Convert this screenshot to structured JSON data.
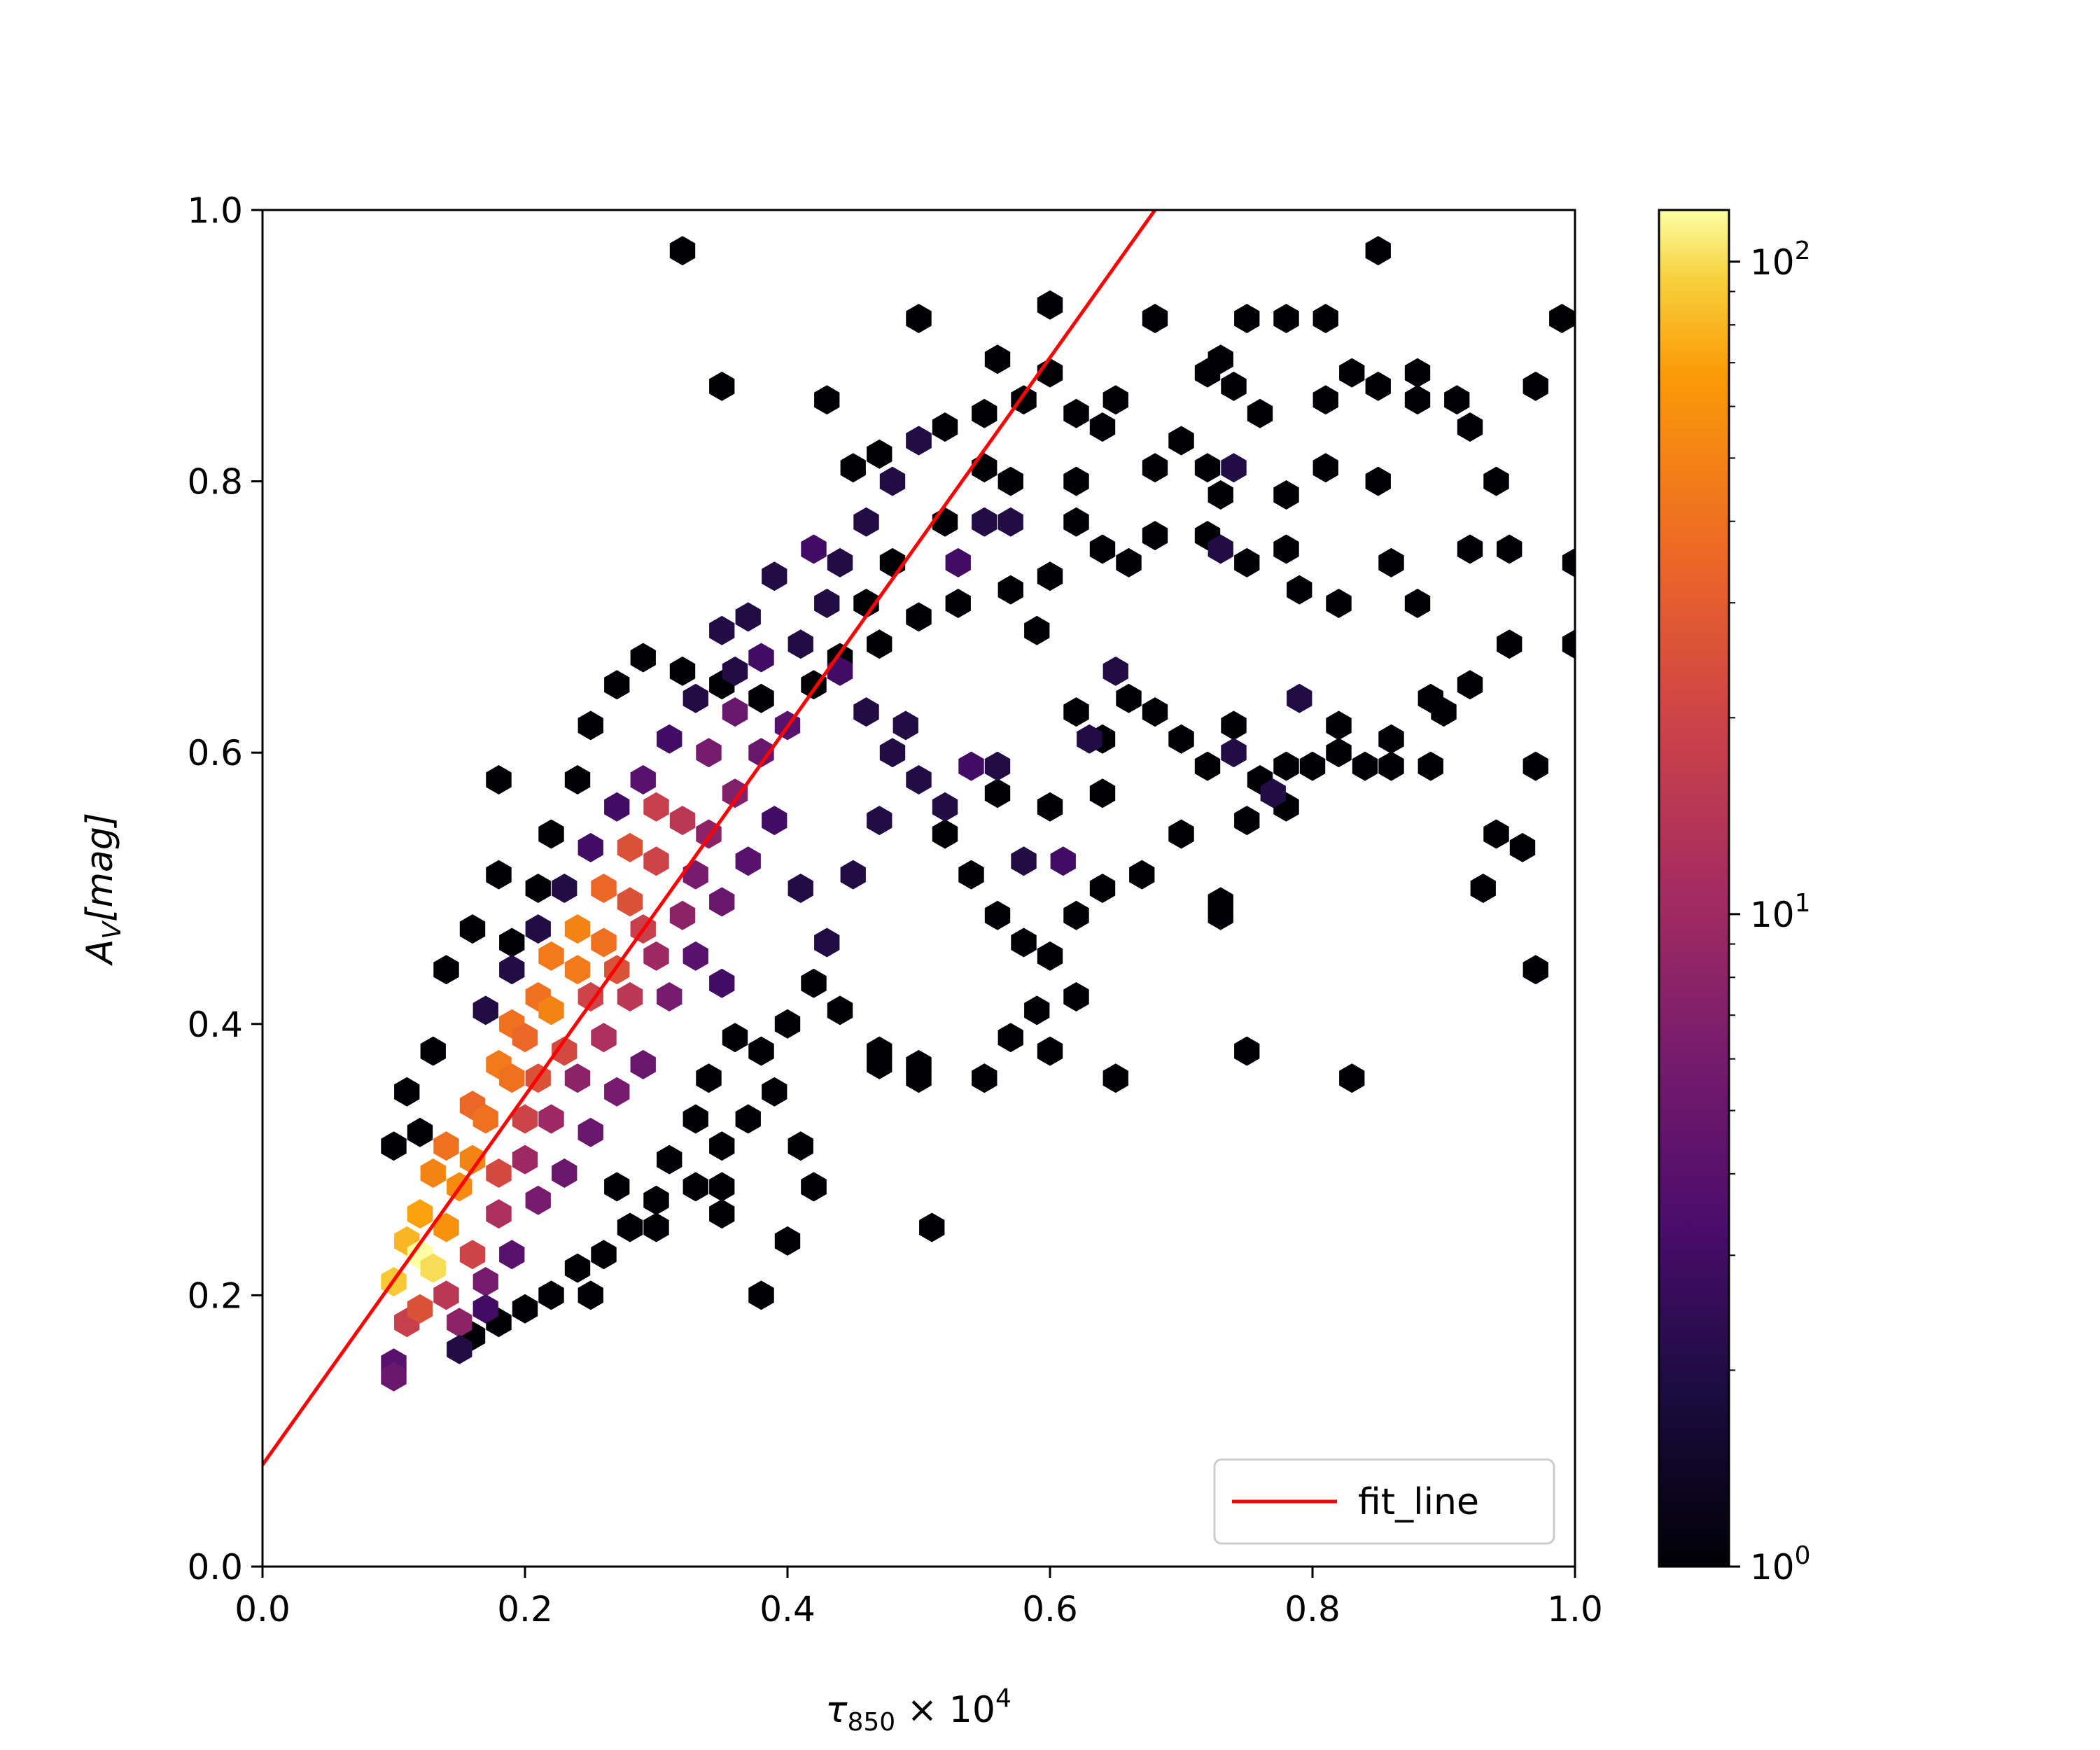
{
  "chart_data": {
    "type": "hexbin",
    "title": "",
    "xlabel": {
      "base": "τ",
      "sub": "850",
      "rest": " × 10",
      "sup": "4"
    },
    "ylabel": {
      "base": "A",
      "sub": "V",
      "rest": "[mag]"
    },
    "xlim": [
      0.0,
      1.0
    ],
    "ylim": [
      0.0,
      1.0
    ],
    "xticks": [
      "0.0",
      "0.2",
      "0.4",
      "0.6",
      "0.8",
      "1.0"
    ],
    "yticks": [
      "0.0",
      "0.2",
      "0.4",
      "0.6",
      "0.8",
      "1.0"
    ],
    "grid": false,
    "legend": {
      "placement": "lower-right",
      "entries": [
        {
          "label": "fit_line",
          "color": "#ff0000"
        }
      ]
    },
    "fit_line": {
      "name": "fit_line",
      "color": "#ff0000",
      "points": [
        [
          0.0,
          0.075
        ],
        [
          0.68,
          1.0
        ]
      ]
    },
    "colorbar": {
      "scale": "log",
      "min": 1,
      "max": 120,
      "colormap": "inferno",
      "ticks": [
        {
          "value": 1,
          "base": "10",
          "exp": "0"
        },
        {
          "value": 10,
          "base": "10",
          "exp": "1"
        },
        {
          "value": 100,
          "base": "10",
          "exp": "2"
        }
      ]
    },
    "hex_counts": [
      [
        0.1,
        0.15,
        4
      ],
      [
        0.11,
        0.18,
        18
      ],
      [
        0.1,
        0.21,
        90
      ],
      [
        0.11,
        0.24,
        80
      ],
      [
        0.12,
        0.23,
        120
      ],
      [
        0.13,
        0.22,
        100
      ],
      [
        0.12,
        0.26,
        70
      ],
      [
        0.14,
        0.25,
        60
      ],
      [
        0.13,
        0.29,
        50
      ],
      [
        0.15,
        0.28,
        55
      ],
      [
        0.14,
        0.31,
        40
      ],
      [
        0.16,
        0.3,
        50
      ],
      [
        0.16,
        0.34,
        35
      ],
      [
        0.17,
        0.33,
        40
      ],
      [
        0.18,
        0.37,
        45
      ],
      [
        0.19,
        0.36,
        40
      ],
      [
        0.19,
        0.4,
        40
      ],
      [
        0.2,
        0.39,
        35
      ],
      [
        0.21,
        0.42,
        40
      ],
      [
        0.22,
        0.41,
        50
      ],
      [
        0.22,
        0.45,
        45
      ],
      [
        0.24,
        0.44,
        45
      ],
      [
        0.24,
        0.47,
        50
      ],
      [
        0.26,
        0.46,
        40
      ],
      [
        0.26,
        0.5,
        35
      ],
      [
        0.28,
        0.49,
        25
      ],
      [
        0.28,
        0.53,
        25
      ],
      [
        0.3,
        0.52,
        20
      ],
      [
        0.3,
        0.56,
        18
      ],
      [
        0.32,
        0.55,
        15
      ],
      [
        0.14,
        0.2,
        15
      ],
      [
        0.16,
        0.23,
        20
      ],
      [
        0.18,
        0.26,
        12
      ],
      [
        0.2,
        0.3,
        10
      ],
      [
        0.22,
        0.33,
        10
      ],
      [
        0.24,
        0.36,
        8
      ],
      [
        0.26,
        0.39,
        12
      ],
      [
        0.28,
        0.42,
        15
      ],
      [
        0.3,
        0.45,
        10
      ],
      [
        0.32,
        0.48,
        8
      ],
      [
        0.12,
        0.19,
        25
      ],
      [
        0.15,
        0.18,
        8
      ],
      [
        0.17,
        0.21,
        6
      ],
      [
        0.18,
        0.29,
        22
      ],
      [
        0.2,
        0.33,
        20
      ],
      [
        0.21,
        0.36,
        25
      ],
      [
        0.23,
        0.38,
        22
      ],
      [
        0.25,
        0.42,
        20
      ],
      [
        0.27,
        0.44,
        25
      ],
      [
        0.29,
        0.47,
        18
      ],
      [
        0.34,
        0.6,
        6
      ],
      [
        0.36,
        0.63,
        5
      ],
      [
        0.34,
        0.54,
        8
      ],
      [
        0.36,
        0.57,
        7
      ],
      [
        0.38,
        0.6,
        5
      ],
      [
        0.4,
        0.62,
        4
      ],
      [
        0.33,
        0.51,
        6
      ],
      [
        0.35,
        0.49,
        5
      ],
      [
        0.37,
        0.52,
        4
      ],
      [
        0.39,
        0.55,
        3
      ],
      [
        0.31,
        0.42,
        6
      ],
      [
        0.33,
        0.45,
        4
      ],
      [
        0.35,
        0.43,
        3
      ],
      [
        0.29,
        0.37,
        5
      ],
      [
        0.27,
        0.35,
        6
      ],
      [
        0.25,
        0.32,
        5
      ],
      [
        0.23,
        0.29,
        5
      ],
      [
        0.21,
        0.27,
        6
      ],
      [
        0.19,
        0.23,
        4
      ],
      [
        0.17,
        0.19,
        3
      ],
      [
        0.15,
        0.16,
        2
      ],
      [
        0.1,
        0.14,
        5
      ],
      [
        0.38,
        0.67,
        3
      ],
      [
        0.36,
        0.66,
        2
      ],
      [
        0.33,
        0.64,
        2
      ],
      [
        0.31,
        0.61,
        3
      ],
      [
        0.29,
        0.58,
        4
      ],
      [
        0.27,
        0.56,
        3
      ],
      [
        0.25,
        0.53,
        3
      ],
      [
        0.23,
        0.5,
        2
      ],
      [
        0.21,
        0.47,
        2
      ],
      [
        0.19,
        0.44,
        2
      ],
      [
        0.17,
        0.41,
        2
      ],
      [
        0.41,
        0.68,
        2
      ],
      [
        0.43,
        0.71,
        2
      ],
      [
        0.44,
        0.74,
        2
      ],
      [
        0.46,
        0.77,
        2
      ],
      [
        0.48,
        0.8,
        2
      ],
      [
        0.42,
        0.75,
        3
      ],
      [
        0.44,
        0.66,
        3
      ],
      [
        0.46,
        0.63,
        2
      ],
      [
        0.48,
        0.6,
        2
      ],
      [
        0.5,
        0.58,
        2
      ],
      [
        0.52,
        0.56,
        2
      ],
      [
        0.54,
        0.59,
        3
      ],
      [
        0.56,
        0.59,
        2
      ],
      [
        0.61,
        0.52,
        3
      ],
      [
        0.63,
        0.61,
        2
      ],
      [
        0.65,
        0.66,
        2
      ],
      [
        0.53,
        0.74,
        3
      ],
      [
        0.55,
        0.77,
        2
      ],
      [
        0.57,
        0.77,
        2
      ],
      [
        0.5,
        0.83,
        2
      ],
      [
        0.77,
        0.57,
        2
      ],
      [
        0.79,
        0.64,
        2
      ],
      [
        0.74,
        0.6,
        2
      ],
      [
        0.73,
        0.75,
        2
      ],
      [
        0.74,
        0.81,
        2
      ],
      [
        0.41,
        0.5,
        2
      ],
      [
        0.43,
        0.46,
        2
      ],
      [
        0.45,
        0.51,
        2
      ],
      [
        0.47,
        0.55,
        2
      ],
      [
        0.58,
        0.52,
        2
      ],
      [
        0.49,
        0.62,
        2
      ],
      [
        0.39,
        0.73,
        2
      ],
      [
        0.37,
        0.7,
        2
      ],
      [
        0.35,
        0.69,
        2
      ]
    ],
    "sparse_bins": [
      [
        0.32,
        0.97
      ],
      [
        0.35,
        0.87
      ],
      [
        0.43,
        0.86
      ],
      [
        0.5,
        0.92
      ],
      [
        0.6,
        0.93
      ],
      [
        0.68,
        0.92
      ],
      [
        0.75,
        0.92
      ],
      [
        0.78,
        0.92
      ],
      [
        0.81,
        0.92
      ],
      [
        0.85,
        0.97
      ],
      [
        0.99,
        0.92
      ],
      [
        0.56,
        0.89
      ],
      [
        0.6,
        0.88
      ],
      [
        0.58,
        0.86
      ],
      [
        0.55,
        0.85
      ],
      [
        0.52,
        0.84
      ],
      [
        0.5,
        0.83
      ],
      [
        0.47,
        0.82
      ],
      [
        0.45,
        0.81
      ],
      [
        0.62,
        0.85
      ],
      [
        0.65,
        0.86
      ],
      [
        0.64,
        0.84
      ],
      [
        0.72,
        0.88
      ],
      [
        0.73,
        0.89
      ],
      [
        0.74,
        0.87
      ],
      [
        0.76,
        0.85
      ],
      [
        0.81,
        0.86
      ],
      [
        0.83,
        0.88
      ],
      [
        0.85,
        0.87
      ],
      [
        0.88,
        0.88
      ],
      [
        0.88,
        0.86
      ],
      [
        0.91,
        0.86
      ],
      [
        0.92,
        0.84
      ],
      [
        0.97,
        0.87
      ],
      [
        0.7,
        0.83
      ],
      [
        0.72,
        0.81
      ],
      [
        0.68,
        0.81
      ],
      [
        0.62,
        0.8
      ],
      [
        0.57,
        0.8
      ],
      [
        0.55,
        0.81
      ],
      [
        0.81,
        0.81
      ],
      [
        0.85,
        0.8
      ],
      [
        0.78,
        0.79
      ],
      [
        0.73,
        0.79
      ],
      [
        0.62,
        0.77
      ],
      [
        0.64,
        0.75
      ],
      [
        0.66,
        0.74
      ],
      [
        0.68,
        0.76
      ],
      [
        0.72,
        0.76
      ],
      [
        0.75,
        0.74
      ],
      [
        0.78,
        0.75
      ],
      [
        0.79,
        0.72
      ],
      [
        0.82,
        0.71
      ],
      [
        0.86,
        0.74
      ],
      [
        0.88,
        0.71
      ],
      [
        0.92,
        0.75
      ],
      [
        0.94,
        0.8
      ],
      [
        0.95,
        0.75
      ],
      [
        1.0,
        0.74
      ],
      [
        0.6,
        0.73
      ],
      [
        0.57,
        0.72
      ],
      [
        0.53,
        0.71
      ],
      [
        0.5,
        0.7
      ],
      [
        0.47,
        0.68
      ],
      [
        0.44,
        0.67
      ],
      [
        0.42,
        0.65
      ],
      [
        0.46,
        0.71
      ],
      [
        0.48,
        0.74
      ],
      [
        0.52,
        0.77
      ],
      [
        0.59,
        0.69
      ],
      [
        0.62,
        0.63
      ],
      [
        0.64,
        0.61
      ],
      [
        0.66,
        0.64
      ],
      [
        0.68,
        0.63
      ],
      [
        0.7,
        0.61
      ],
      [
        0.72,
        0.59
      ],
      [
        0.74,
        0.62
      ],
      [
        0.76,
        0.58
      ],
      [
        0.78,
        0.59
      ],
      [
        0.8,
        0.59
      ],
      [
        0.82,
        0.62
      ],
      [
        0.84,
        0.59
      ],
      [
        0.86,
        0.59
      ],
      [
        0.89,
        0.59
      ],
      [
        0.9,
        0.63
      ],
      [
        0.92,
        0.65
      ],
      [
        0.95,
        0.68
      ],
      [
        0.97,
        0.59
      ],
      [
        1.0,
        0.68
      ],
      [
        0.64,
        0.57
      ],
      [
        0.6,
        0.56
      ],
      [
        0.56,
        0.57
      ],
      [
        0.52,
        0.54
      ],
      [
        0.54,
        0.51
      ],
      [
        0.56,
        0.48
      ],
      [
        0.58,
        0.46
      ],
      [
        0.6,
        0.45
      ],
      [
        0.62,
        0.48
      ],
      [
        0.64,
        0.5
      ],
      [
        0.67,
        0.51
      ],
      [
        0.7,
        0.54
      ],
      [
        0.73,
        0.48
      ],
      [
        0.75,
        0.55
      ],
      [
        0.78,
        0.56
      ],
      [
        0.82,
        0.6
      ],
      [
        0.86,
        0.61
      ],
      [
        0.89,
        0.64
      ],
      [
        0.94,
        0.54
      ],
      [
        0.96,
        0.53
      ],
      [
        0.93,
        0.5
      ],
      [
        0.97,
        0.44
      ],
      [
        0.73,
        0.49
      ],
      [
        0.62,
        0.42
      ],
      [
        0.59,
        0.41
      ],
      [
        0.57,
        0.39
      ],
      [
        0.55,
        0.36
      ],
      [
        0.5,
        0.37
      ],
      [
        0.47,
        0.38
      ],
      [
        0.44,
        0.41
      ],
      [
        0.42,
        0.43
      ],
      [
        0.4,
        0.4
      ],
      [
        0.38,
        0.38
      ],
      [
        0.36,
        0.39
      ],
      [
        0.34,
        0.36
      ],
      [
        0.33,
        0.33
      ],
      [
        0.35,
        0.31
      ],
      [
        0.37,
        0.33
      ],
      [
        0.39,
        0.35
      ],
      [
        0.41,
        0.31
      ],
      [
        0.42,
        0.28
      ],
      [
        0.4,
        0.24
      ],
      [
        0.35,
        0.26
      ],
      [
        0.33,
        0.28
      ],
      [
        0.31,
        0.3
      ],
      [
        0.3,
        0.27
      ],
      [
        0.28,
        0.25
      ],
      [
        0.26,
        0.23
      ],
      [
        0.24,
        0.22
      ],
      [
        0.22,
        0.2
      ],
      [
        0.2,
        0.19
      ],
      [
        0.18,
        0.18
      ],
      [
        0.16,
        0.17
      ],
      [
        0.51,
        0.25
      ],
      [
        0.42,
        0.28
      ],
      [
        0.35,
        0.28
      ],
      [
        0.38,
        0.2
      ],
      [
        0.25,
        0.2
      ],
      [
        0.3,
        0.25
      ],
      [
        0.27,
        0.28
      ],
      [
        0.75,
        0.38
      ],
      [
        0.83,
        0.36
      ],
      [
        0.65,
        0.36
      ],
      [
        0.6,
        0.38
      ],
      [
        0.55,
        0.36
      ],
      [
        0.5,
        0.36
      ],
      [
        0.47,
        0.37
      ],
      [
        0.22,
        0.54
      ],
      [
        0.24,
        0.58
      ],
      [
        0.25,
        0.62
      ],
      [
        0.27,
        0.65
      ],
      [
        0.29,
        0.67
      ],
      [
        0.32,
        0.66
      ],
      [
        0.35,
        0.65
      ],
      [
        0.38,
        0.64
      ],
      [
        0.18,
        0.58
      ],
      [
        0.21,
        0.5
      ],
      [
        0.18,
        0.51
      ],
      [
        0.19,
        0.46
      ],
      [
        0.16,
        0.47
      ],
      [
        0.14,
        0.44
      ],
      [
        0.13,
        0.38
      ],
      [
        0.11,
        0.35
      ],
      [
        0.1,
        0.31
      ],
      [
        0.12,
        0.32
      ]
    ]
  }
}
